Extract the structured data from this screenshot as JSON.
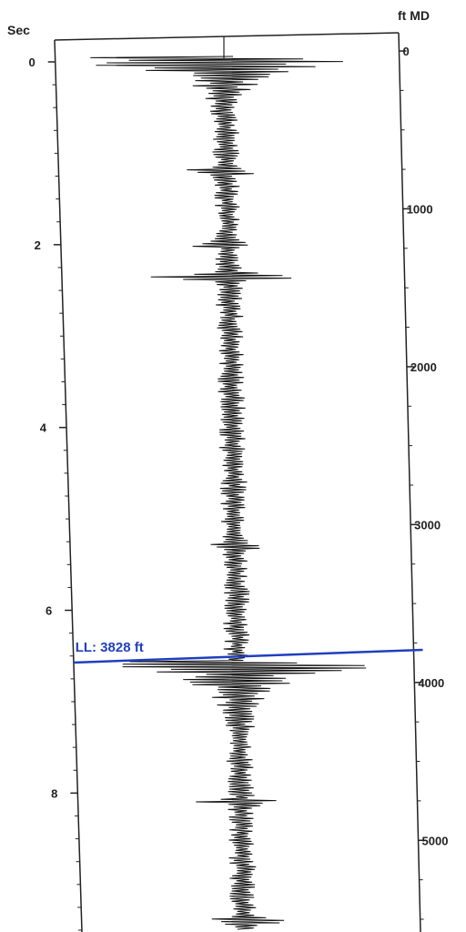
{
  "chart_data": {
    "type": "line",
    "left_axis": {
      "label": "Sec",
      "min": 0,
      "max": 9.5,
      "ticks": [
        0,
        2,
        4,
        6,
        8
      ],
      "minor_step": 0.25
    },
    "right_axis": {
      "label": "ft MD",
      "min": 0,
      "max": 5500,
      "ticks": [
        0,
        1000,
        2000,
        3000,
        4000,
        5000
      ],
      "minor_step": 250
    },
    "marker": {
      "label": "LL: 3828 ft",
      "depth_ft": 3828,
      "color": "#1f3fbf"
    },
    "series": [
      {
        "trace": "waveform",
        "color": "#111111",
        "bursts": [
          {
            "time_s": 0.0,
            "decay_s": 0.35,
            "amplitude": 1.0
          },
          {
            "time_s": 6.6,
            "decay_s": 0.45,
            "amplitude": 0.85
          }
        ],
        "notable_spikes": [
          {
            "time_s": 1.2,
            "amplitude": 0.25
          },
          {
            "time_s": 2.0,
            "amplitude": 0.22
          },
          {
            "time_s": 2.35,
            "amplitude": 0.5
          },
          {
            "time_s": 5.3,
            "amplitude": 0.15
          },
          {
            "time_s": 8.1,
            "amplitude": 0.2
          },
          {
            "time_s": 9.4,
            "amplitude": 0.25
          }
        ],
        "background_amplitude": 0.08
      }
    ],
    "grid": false
  }
}
